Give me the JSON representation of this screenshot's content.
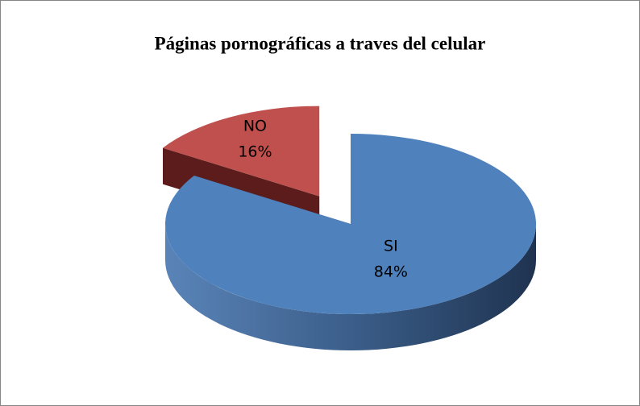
{
  "chart_data": {
    "type": "pie",
    "title": "Páginas pornográficas a traves del celular",
    "categories": [
      "SI",
      "NO"
    ],
    "values": [
      84,
      16
    ],
    "value_labels": [
      "84%",
      "16%"
    ],
    "colors": [
      "#4f81bd",
      "#c0504d"
    ]
  }
}
